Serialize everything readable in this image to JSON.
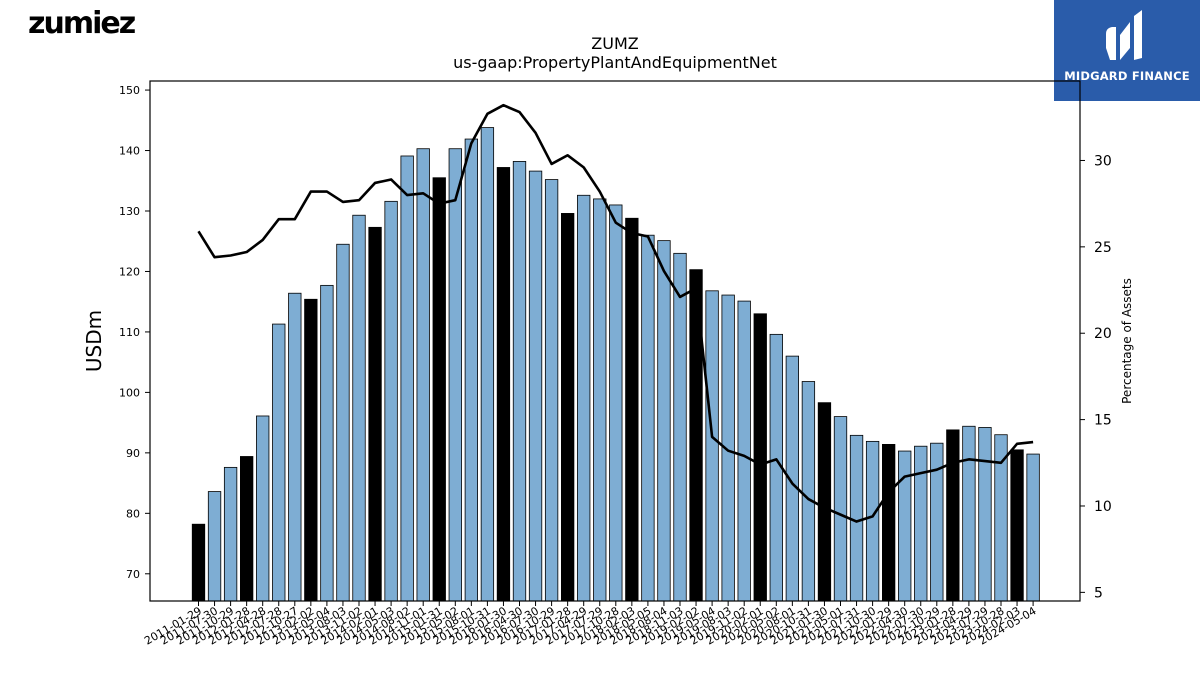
{
  "brand": {
    "logo_text": "zumiez"
  },
  "badge": {
    "label": "MIDGARD FINANCE",
    "color": "#2a5caa"
  },
  "chart_data": {
    "type": "bar",
    "title": "ZUMZ",
    "subtitle": "us-gaap:PropertyPlantAndEquipmentNet",
    "ylabel": "USDm",
    "y2label": "Percentage of Assets",
    "ylim": [
      65.5,
      151.5
    ],
    "y2lim": [
      4.5,
      34.6
    ],
    "yticks": [
      70,
      80,
      90,
      100,
      110,
      120,
      130,
      140,
      150
    ],
    "y2ticks": [
      5,
      10,
      15,
      20,
      25,
      30
    ],
    "bar_color": "#7eadd3",
    "highlight_color": "#000000",
    "line_color": "#000000",
    "categories": [
      "2011-01-29",
      "2011-07-30",
      "2011-10-29",
      "2012-01-28",
      "2012-04-28",
      "2012-07-28",
      "2012-10-27",
      "2013-02-02",
      "2013-05-04",
      "2013-08-03",
      "2013-11-02",
      "2014-02-01",
      "2014-05-03",
      "2014-08-02",
      "2014-11-01",
      "2015-01-31",
      "2015-05-02",
      "2015-08-01",
      "2015-10-31",
      "2016-01-30",
      "2016-04-30",
      "2016-07-30",
      "2016-10-29",
      "2017-01-28",
      "2017-04-29",
      "2017-07-29",
      "2017-10-28",
      "2018-02-03",
      "2018-05-05",
      "2018-08-04",
      "2018-11-03",
      "2019-02-02",
      "2019-05-04",
      "2019-08-03",
      "2019-11-02",
      "2020-02-01",
      "2020-05-02",
      "2020-08-01",
      "2020-10-31",
      "2021-01-30",
      "2021-05-01",
      "2021-07-31",
      "2021-10-30",
      "2022-01-29",
      "2022-04-30",
      "2022-07-30",
      "2022-10-29",
      "2023-01-28",
      "2023-04-29",
      "2023-07-29",
      "2023-10-28",
      "2024-02-03",
      "2024-05-04"
    ],
    "values": [
      78.2,
      83.6,
      87.6,
      89.4,
      96.1,
      111.3,
      116.4,
      115.4,
      117.7,
      124.5,
      129.3,
      127.3,
      131.6,
      139.1,
      140.3,
      135.5,
      140.3,
      141.9,
      143.8,
      137.2,
      138.2,
      136.6,
      135.2,
      129.6,
      132.6,
      132.0,
      131.0,
      128.8,
      126.0,
      125.1,
      123.0,
      120.3,
      116.8,
      116.1,
      115.1,
      113.0,
      109.6,
      106.0,
      101.8,
      98.3,
      96.0,
      92.9,
      91.9,
      91.4,
      90.3,
      91.1,
      91.6,
      93.8,
      94.4,
      94.2,
      93.0,
      90.5,
      89.8
    ],
    "highlight": [
      true,
      false,
      false,
      true,
      false,
      false,
      false,
      true,
      false,
      false,
      false,
      true,
      false,
      false,
      false,
      true,
      false,
      false,
      false,
      true,
      false,
      false,
      false,
      true,
      false,
      false,
      false,
      true,
      false,
      false,
      false,
      true,
      false,
      false,
      false,
      true,
      false,
      false,
      false,
      true,
      false,
      false,
      false,
      true,
      false,
      false,
      false,
      true,
      false,
      false,
      false,
      true,
      false
    ],
    "line_values": [
      25.9,
      24.4,
      24.5,
      24.7,
      25.4,
      26.6,
      26.6,
      28.2,
      28.2,
      27.6,
      27.7,
      28.7,
      28.9,
      28.0,
      28.1,
      27.5,
      27.7,
      31.0,
      32.7,
      33.2,
      32.8,
      31.6,
      29.8,
      30.3,
      29.6,
      28.2,
      26.4,
      25.8,
      25.6,
      23.6,
      22.1,
      22.6,
      14.0,
      13.2,
      12.9,
      12.4,
      12.7,
      11.3,
      10.4,
      9.9,
      9.5,
      9.1,
      9.4,
      10.8,
      11.7,
      11.9,
      12.1,
      12.5,
      12.7,
      12.6,
      12.5,
      13.6,
      13.7
    ],
    "grid": false,
    "legend": "none"
  }
}
